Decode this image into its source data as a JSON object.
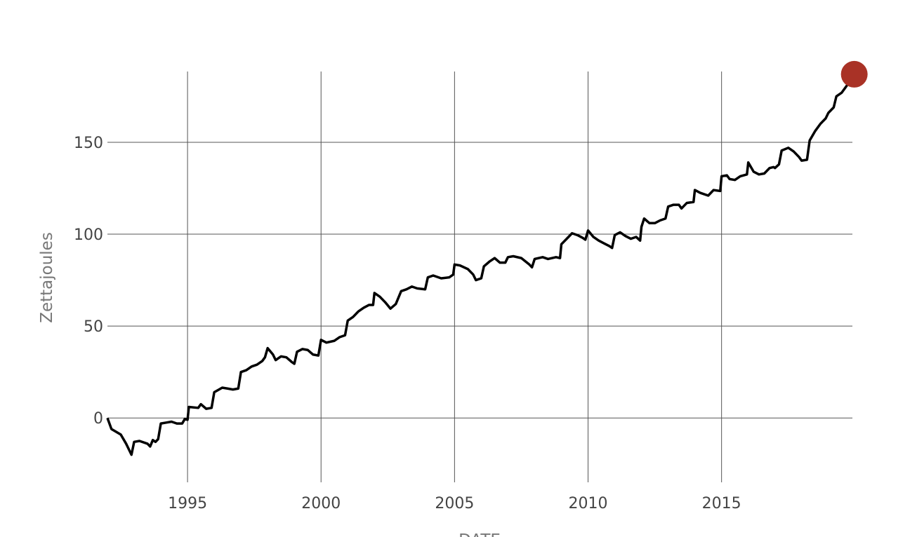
{
  "chart_data": {
    "type": "line",
    "x_label": "DATE",
    "y_label": "Zettajoules",
    "color": "#000000",
    "highlight_color": "#a93226",
    "highlight_last": true,
    "grid": true,
    "xlim": [
      1992,
      2019.9
    ],
    "ylim": [
      -35,
      188.5
    ],
    "xticks": [
      1995,
      2000,
      2005,
      2010,
      2015
    ],
    "yticks": [
      0,
      50,
      100,
      150
    ],
    "x": [
      1992.0,
      1992.15,
      1992.5,
      1992.7,
      1992.9,
      1993.0,
      1993.2,
      1993.5,
      1993.6,
      1993.7,
      1993.8,
      1993.9,
      1994.0,
      1994.2,
      1994.4,
      1994.6,
      1994.8,
      1994.9,
      1995.0,
      1995.05,
      1995.4,
      1995.5,
      1995.7,
      1995.9,
      1996.0,
      1996.3,
      1996.5,
      1996.7,
      1996.9,
      1997.0,
      1997.2,
      1997.4,
      1997.6,
      1997.8,
      1997.9,
      1998.0,
      1998.2,
      1998.3,
      1998.5,
      1998.7,
      1998.9,
      1999.0,
      1999.1,
      1999.3,
      1999.5,
      1999.7,
      1999.9,
      2000.0,
      2000.2,
      2000.5,
      2000.7,
      2000.9,
      2001.0,
      2001.2,
      2001.4,
      2001.6,
      2001.8,
      2001.95,
      2002.0,
      2002.2,
      2002.4,
      2002.6,
      2002.8,
      2003.0,
      2003.2,
      2003.4,
      2003.6,
      2003.9,
      2004.0,
      2004.2,
      2004.5,
      2004.8,
      2004.95,
      2005.0,
      2005.2,
      2005.5,
      2005.7,
      2005.8,
      2006.0,
      2006.1,
      2006.3,
      2006.5,
      2006.7,
      2006.9,
      2007.0,
      2007.2,
      2007.5,
      2007.8,
      2007.9,
      2008.0,
      2008.3,
      2008.5,
      2008.8,
      2008.95,
      2009.0,
      2009.2,
      2009.4,
      2009.6,
      2009.8,
      2009.9,
      2010.0,
      2010.2,
      2010.4,
      2010.6,
      2010.8,
      2010.9,
      2011.0,
      2011.2,
      2011.4,
      2011.6,
      2011.8,
      2011.95,
      2012.0,
      2012.1,
      2012.3,
      2012.5,
      2012.7,
      2012.9,
      2013.0,
      2013.2,
      2013.4,
      2013.5,
      2013.7,
      2013.95,
      2014.0,
      2014.2,
      2014.5,
      2014.7,
      2014.95,
      2015.0,
      2015.2,
      2015.3,
      2015.5,
      2015.7,
      2015.95,
      2016.0,
      2016.2,
      2016.4,
      2016.6,
      2016.8,
      2016.95,
      2017.0,
      2017.15,
      2017.25,
      2017.5,
      2017.7,
      2017.9,
      2018.0,
      2018.2,
      2018.3,
      2018.5,
      2018.7,
      2018.9,
      2019.0,
      2019.2,
      2019.3,
      2019.5,
      2019.7,
      2019.97
    ],
    "values": [
      0,
      -6,
      -9,
      -14,
      -20,
      -13,
      -12.5,
      -14,
      -15.5,
      -12,
      -13,
      -11.5,
      -3,
      -2.5,
      -2,
      -3,
      -3,
      -0.5,
      -1,
      6,
      5.5,
      7.5,
      5,
      5.5,
      14,
      16.5,
      16,
      15.5,
      16,
      25,
      26,
      28,
      29,
      31,
      33,
      38,
      34.5,
      31.5,
      33.5,
      33,
      30.5,
      29.5,
      36,
      37.5,
      37,
      34.5,
      34,
      42.5,
      41,
      42,
      44,
      45,
      53,
      55,
      58,
      60,
      61.5,
      61.5,
      68,
      66,
      63,
      59.5,
      62,
      69,
      70,
      71.5,
      70.5,
      70,
      76.5,
      77.5,
      76,
      76.5,
      78,
      83.5,
      83,
      81,
      78,
      75,
      76,
      82.5,
      85,
      87,
      84.5,
      84.5,
      87.5,
      88,
      87,
      83.5,
      82,
      86.5,
      87.5,
      86.5,
      87.5,
      87,
      94.5,
      97.5,
      100.5,
      99.5,
      98,
      97,
      102,
      98.5,
      96.5,
      95,
      93.5,
      92.5,
      99.5,
      101,
      99,
      97.5,
      98.5,
      96.5,
      104,
      108.5,
      106,
      106,
      107.5,
      108.5,
      115,
      116,
      116,
      114,
      117,
      117.5,
      124,
      122.5,
      121,
      124,
      123.5,
      131.5,
      132,
      130,
      129.5,
      131.5,
      132.5,
      139,
      134,
      132.5,
      133,
      136,
      136.5,
      136,
      138,
      145.5,
      147,
      145,
      142,
      140,
      140.5,
      151,
      156,
      160,
      163,
      166,
      169,
      175,
      177,
      181,
      187
    ]
  }
}
